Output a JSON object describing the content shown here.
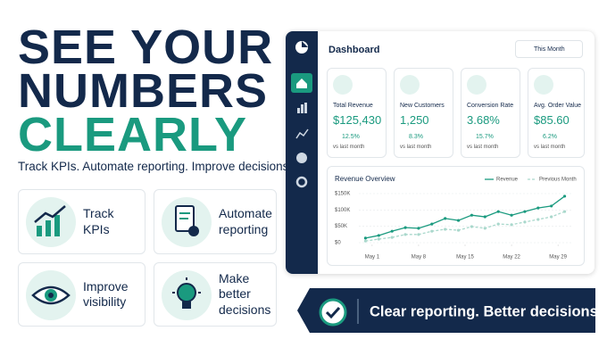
{
  "headline": {
    "line1": "SEE YOUR",
    "line2": "NUMBERS",
    "line3": "CLEARLY"
  },
  "tagline": "Track KPIs. Automate reporting. Improve decisions.",
  "features": [
    {
      "label": "Track KPIs"
    },
    {
      "label": "Automate reporting"
    },
    {
      "label": "Improve visibility"
    },
    {
      "label": "Make better decisions"
    }
  ],
  "dashboard": {
    "title": "Dashboard",
    "period": "This Month",
    "kpis": [
      {
        "label": "Total Revenue",
        "value": "$125,430",
        "change": "12.5%",
        "note": "vs last month"
      },
      {
        "label": "New Customers",
        "value": "1,250",
        "change": "8.3%",
        "note": "vs last month"
      },
      {
        "label": "Conversion Rate",
        "value": "3.68%",
        "change": "15.7%",
        "note": "vs last month"
      },
      {
        "label": "Avg. Order Value",
        "value": "$85.60",
        "change": "6.2%",
        "note": "vs last month"
      }
    ]
  },
  "chart_data": {
    "type": "line",
    "title": "Revenue Overview",
    "x": [
      0,
      2,
      4,
      6,
      8,
      10,
      12,
      14,
      16,
      18,
      20,
      22,
      24,
      26,
      28,
      30
    ],
    "xlim": [
      -1,
      31
    ],
    "xticks": [
      {
        "value": 1,
        "label": "May 1"
      },
      {
        "value": 8,
        "label": "May 8"
      },
      {
        "value": 15,
        "label": "May 15"
      },
      {
        "value": 22,
        "label": "May 22"
      },
      {
        "value": 29,
        "label": "May 29"
      }
    ],
    "ylim": [
      0,
      150000
    ],
    "yticks": [
      {
        "value": 0,
        "label": "$0"
      },
      {
        "value": 50000,
        "label": "$50K"
      },
      {
        "value": 100000,
        "label": "$100K"
      },
      {
        "value": 150000,
        "label": "$150K"
      }
    ],
    "grid": true,
    "series": [
      {
        "name": "Revenue",
        "color": "#1a9a7f",
        "dashed": false,
        "values": [
          14000,
          22000,
          35000,
          46000,
          44000,
          57000,
          74000,
          68000,
          84000,
          79000,
          95000,
          84000,
          95000,
          106000,
          112000,
          142000
        ]
      },
      {
        "name": "Previous Month",
        "color": "#a9d8cc",
        "dashed": true,
        "values": [
          5000,
          11000,
          16000,
          25000,
          25000,
          35000,
          41000,
          38000,
          49000,
          44000,
          57000,
          55000,
          63000,
          71000,
          79000,
          95000
        ]
      }
    ]
  },
  "banner": "Clear reporting. Better decisions."
}
